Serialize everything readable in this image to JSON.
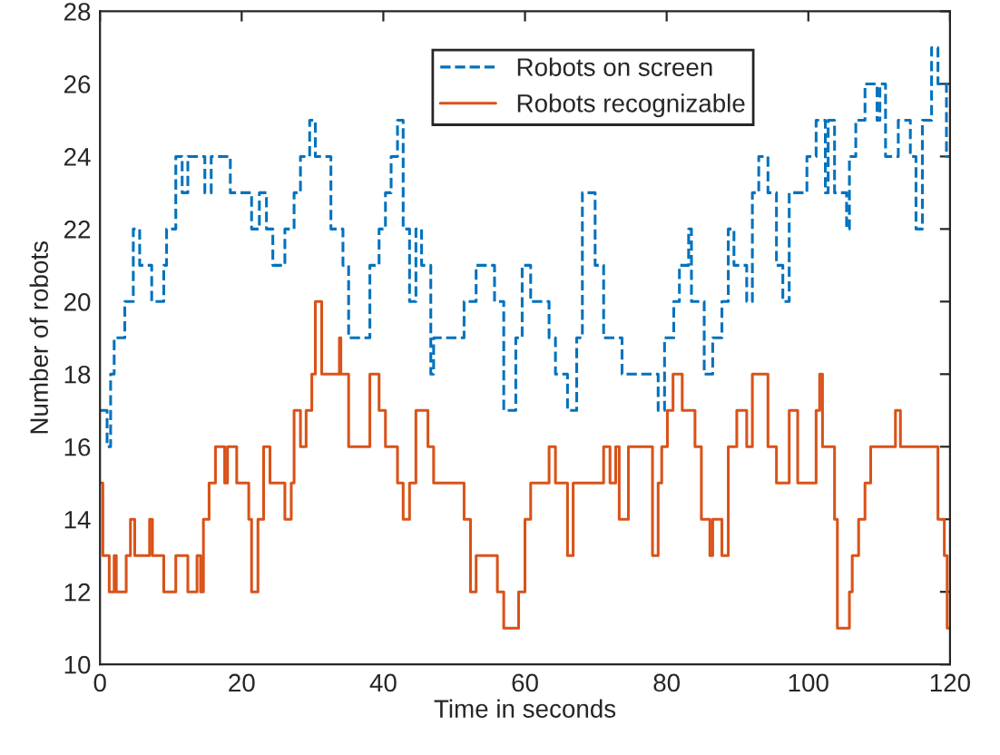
{
  "chart_data": {
    "type": "step",
    "xlabel": "Time in seconds",
    "ylabel": "Number of robots",
    "xlim": [
      0,
      120
    ],
    "xticks": [
      0,
      20,
      40,
      60,
      80,
      100,
      120
    ],
    "ylim": [
      10,
      28
    ],
    "yticks": [
      10,
      12,
      14,
      16,
      18,
      20,
      22,
      24,
      26,
      28
    ],
    "grid": false,
    "legend": "top",
    "series": [
      {
        "name": "Robots on screen",
        "color": "#0072bd",
        "line_style": "dashed",
        "x": [
          0,
          1,
          1.5,
          2,
          3.5,
          4.7,
          5.6,
          7.3,
          9,
          9.4,
          10.7,
          11.6,
          12.4,
          14.8,
          15.7,
          18.4,
          21.4,
          22.5,
          23.5,
          24.4,
          26.1,
          27.4,
          28.3,
          29.6,
          30.4,
          32.6,
          34.3,
          35.1,
          38.1,
          39.4,
          40.3,
          41.1,
          42,
          42.8,
          43.7,
          44.6,
          45.4,
          46.7,
          47.1,
          51.4,
          53.1,
          55.7,
          57,
          58.7,
          59.6,
          60.8,
          63.4,
          64.3,
          66,
          67.3,
          68.1,
          69.9,
          71.1,
          73.7,
          78.8,
          79.7,
          80.1,
          81,
          81.8,
          83.1,
          83.5,
          85.3,
          86.5,
          87.8,
          88.7,
          89.5,
          91.3,
          92.1,
          93,
          94.3,
          95.5,
          96.4,
          97.3,
          99.8,
          101.1,
          102.4,
          102.8,
          103.7,
          105.4,
          105.8,
          106.7,
          108,
          109.7,
          110.1,
          110.9,
          112.7,
          114.4,
          115.2,
          116.1,
          117.4,
          118.3,
          119.5,
          120
        ],
        "values": [
          17,
          16,
          18,
          19,
          20,
          22,
          21,
          20,
          21,
          22,
          24,
          23,
          24,
          23,
          24,
          23,
          22,
          23,
          22,
          21,
          22,
          23,
          24,
          25,
          24,
          22,
          21,
          19,
          21,
          22,
          23,
          24,
          25,
          22,
          20,
          22,
          21,
          18,
          19,
          20,
          21,
          20,
          17,
          19,
          21,
          20,
          19,
          18,
          17,
          19,
          23,
          21,
          19,
          18,
          17,
          19,
          19,
          20,
          21,
          22,
          20,
          18,
          19,
          20,
          22,
          21,
          20,
          23,
          24,
          23,
          21,
          20,
          23,
          24,
          25,
          23,
          25,
          23,
          22,
          24,
          25,
          26,
          25,
          26,
          24,
          25,
          24,
          22,
          25,
          27,
          26,
          24,
          24
        ]
      },
      {
        "name": "Robots recognizable",
        "color": "#d95319",
        "line_style": "solid",
        "x": [
          0,
          0.4,
          1.3,
          2,
          2.3,
          3.7,
          4.3,
          4.9,
          7,
          7.4,
          9,
          10.7,
          12.4,
          13.7,
          14.2,
          14.6,
          15.4,
          16.3,
          17.6,
          18,
          19.3,
          21,
          21.4,
          22.3,
          23.1,
          24,
          26.1,
          27,
          27.4,
          28.3,
          29.1,
          29.9,
          30.4,
          31.3,
          33.8,
          34,
          35.1,
          38.1,
          39.4,
          40.3,
          42,
          42.8,
          43.7,
          44.6,
          46.3,
          47.1,
          51.4,
          52.3,
          53.1,
          56.1,
          57,
          59.1,
          60,
          60.8,
          63.4,
          64.3,
          66,
          66.8,
          71.1,
          72,
          72.8,
          73.3,
          74.6,
          78,
          78.8,
          79.3,
          80.1,
          80.9,
          82.2,
          84,
          84.9,
          86.1,
          86.5,
          87.8,
          88.7,
          89.9,
          91.3,
          92.1,
          94.3,
          95.5,
          97.3,
          98.5,
          101.1,
          101.6,
          102,
          103.7,
          104.1,
          105.8,
          106.2,
          107.1,
          108,
          108.8,
          112.3,
          113,
          118.3,
          119.2,
          119.6,
          120
        ],
        "values": [
          15,
          13,
          12,
          13,
          12,
          13,
          14,
          13,
          14,
          13,
          12,
          13,
          12,
          13,
          12,
          14,
          15,
          16,
          15,
          16,
          15,
          14,
          12,
          14,
          16,
          15,
          14,
          15,
          17,
          16,
          17,
          18,
          20,
          18,
          19,
          18,
          16,
          18,
          17,
          16,
          15,
          14,
          15,
          17,
          16,
          15,
          14,
          12,
          13,
          12,
          11,
          12,
          14,
          15,
          16,
          15,
          13,
          15,
          16,
          15,
          16,
          14,
          16,
          13,
          15,
          16,
          17,
          18,
          17,
          16,
          14,
          13,
          14,
          13,
          16,
          17,
          16,
          18,
          16,
          15,
          17,
          15,
          17,
          18,
          16,
          14,
          11,
          12,
          13,
          14,
          15,
          16,
          17,
          16,
          14,
          13,
          11,
          11
        ]
      }
    ]
  }
}
